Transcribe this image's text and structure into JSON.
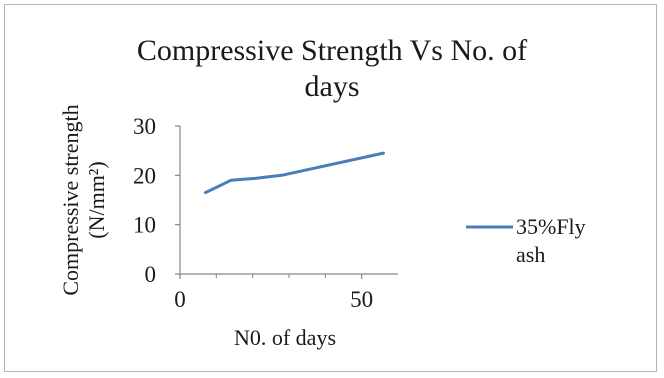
{
  "chart_data": {
    "type": "line",
    "title_lines": [
      "Compressive Strength Vs No. of",
      "days"
    ],
    "xlabel": "N0. of days",
    "ylabel_lines": [
      "Compressive strength",
      "(N/mm²)"
    ],
    "xlim": [
      0,
      60
    ],
    "ylim": [
      0,
      30
    ],
    "x_ticks": [
      "0",
      "50"
    ],
    "y_ticks": [
      "0",
      "10",
      "20",
      "30"
    ],
    "grid": false,
    "legend_position": "right",
    "series": [
      {
        "name": "35%Fly ash",
        "name_lines": [
          "35%Fly",
          "ash"
        ],
        "color": "#4a7ebb",
        "x": [
          7,
          14,
          21,
          28,
          56
        ],
        "y": [
          16.5,
          19,
          19.4,
          20,
          24.5
        ]
      }
    ]
  }
}
